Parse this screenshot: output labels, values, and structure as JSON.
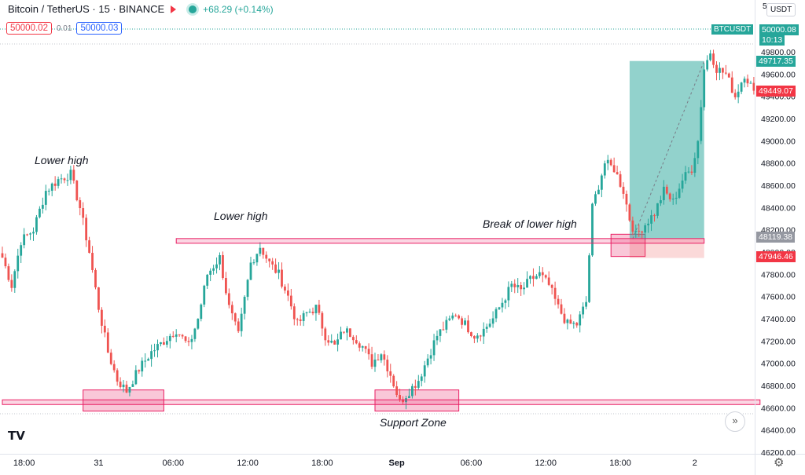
{
  "header": {
    "title": "Bitcoin / TetherUS · 15 · BINANCE",
    "change": "+68.29 (+0.14%)",
    "currency": "USDT",
    "top_tick": "5"
  },
  "trade_bar": {
    "sell_price": "50000.02",
    "spread": "0.01",
    "buy_price": "50000.03"
  },
  "price_tags": {
    "symbol": "BTCUSDT",
    "last_price": "50000.08",
    "countdown": "10:13",
    "tp_price": "49717.35",
    "current_price": "49449.07",
    "entry_price": "48119.38",
    "sl_price": "47946.46"
  },
  "annotations": {
    "lower_high_1": "Lower high",
    "lower_high_2": "Lower high",
    "break": "Break of lower high",
    "support": "Support Zone"
  },
  "chart_data": {
    "type": "candlestick",
    "ylim": [
      46200,
      50100
    ],
    "y_ticks": [
      49800,
      49600,
      49400,
      49200,
      49000,
      48800,
      48600,
      48400,
      48200,
      48000,
      47800,
      47600,
      47400,
      47200,
      47000,
      46800,
      46600,
      46400,
      46200
    ],
    "x_ticks": [
      {
        "label": "18:00",
        "bar": 7
      },
      {
        "label": "31",
        "bar": 31
      },
      {
        "label": "06:00",
        "bar": 55
      },
      {
        "label": "12:00",
        "bar": 79
      },
      {
        "label": "18:00",
        "bar": 103
      },
      {
        "label": "Sep",
        "bar": 127
      },
      {
        "label": "06:00",
        "bar": 151
      },
      {
        "label": "12:00",
        "bar": 175
      },
      {
        "label": "18:00",
        "bar": 199
      },
      {
        "label": "2",
        "bar": 223
      }
    ],
    "close_path": [
      [
        0,
        47950
      ],
      [
        3,
        47700
      ],
      [
        6,
        48100
      ],
      [
        10,
        48200
      ],
      [
        14,
        48550
      ],
      [
        18,
        48650
      ],
      [
        22,
        48700
      ],
      [
        25,
        48400
      ],
      [
        28,
        48000
      ],
      [
        31,
        47500
      ],
      [
        34,
        47100
      ],
      [
        37,
        46850
      ],
      [
        40,
        46750
      ],
      [
        44,
        46950
      ],
      [
        48,
        47100
      ],
      [
        52,
        47200
      ],
      [
        56,
        47300
      ],
      [
        60,
        47150
      ],
      [
        63,
        47400
      ],
      [
        66,
        47800
      ],
      [
        70,
        47950
      ],
      [
        73,
        47500
      ],
      [
        76,
        47250
      ],
      [
        80,
        47900
      ],
      [
        83,
        48050
      ],
      [
        86,
        47900
      ],
      [
        89,
        47800
      ],
      [
        92,
        47600
      ],
      [
        95,
        47350
      ],
      [
        98,
        47450
      ],
      [
        101,
        47500
      ],
      [
        104,
        47250
      ],
      [
        107,
        47150
      ],
      [
        110,
        47300
      ],
      [
        113,
        47250
      ],
      [
        116,
        47150
      ],
      [
        119,
        47000
      ],
      [
        122,
        47100
      ],
      [
        125,
        46900
      ],
      [
        128,
        46650
      ],
      [
        131,
        46750
      ],
      [
        134,
        46850
      ],
      [
        137,
        47050
      ],
      [
        140,
        47250
      ],
      [
        143,
        47350
      ],
      [
        146,
        47450
      ],
      [
        149,
        47350
      ],
      [
        152,
        47250
      ],
      [
        155,
        47300
      ],
      [
        158,
        47400
      ],
      [
        161,
        47550
      ],
      [
        164,
        47700
      ],
      [
        167,
        47650
      ],
      [
        170,
        47750
      ],
      [
        173,
        47800
      ],
      [
        176,
        47700
      ],
      [
        179,
        47500
      ],
      [
        182,
        47350
      ],
      [
        185,
        47350
      ],
      [
        188,
        47550
      ],
      [
        190,
        48400
      ],
      [
        192,
        48600
      ],
      [
        194,
        48800
      ],
      [
        197,
        48750
      ],
      [
        200,
        48550
      ],
      [
        202,
        48300
      ],
      [
        204,
        48150
      ],
      [
        207,
        48250
      ],
      [
        210,
        48350
      ],
      [
        213,
        48550
      ],
      [
        216,
        48450
      ],
      [
        219,
        48650
      ],
      [
        222,
        48750
      ],
      [
        224,
        49000
      ],
      [
        226,
        49650
      ],
      [
        228,
        49800
      ],
      [
        230,
        49650
      ],
      [
        233,
        49600
      ],
      [
        236,
        49400
      ],
      [
        239,
        49600
      ],
      [
        242,
        49450
      ]
    ],
    "hlines": [
      {
        "name": "lower-high-level",
        "y": 48100,
        "from_bar": 56,
        "to_bar": 226
      },
      {
        "name": "support-level",
        "y": 46650,
        "from_bar": 0,
        "to_bar": 244
      }
    ],
    "zones": [
      {
        "name": "support-box-1",
        "bar_from": 26,
        "bar_to": 52,
        "y_from": 46570,
        "y_to": 46760
      },
      {
        "name": "support-box-2",
        "bar_from": 120,
        "bar_to": 147,
        "y_from": 46570,
        "y_to": 46760
      },
      {
        "name": "break-box",
        "bar_from": 196,
        "bar_to": 207,
        "y_from": 47960,
        "y_to": 48160
      }
    ],
    "position": {
      "entry": 48119.38,
      "target": 49717.35,
      "stop": 47946.46,
      "bar_from": 202,
      "bar_to": 226
    },
    "colors": {
      "up": "#26a69a",
      "down": "#ef5350",
      "zone": "#e91e63",
      "tp": "#26a69a",
      "sl": "#ef5350"
    }
  }
}
